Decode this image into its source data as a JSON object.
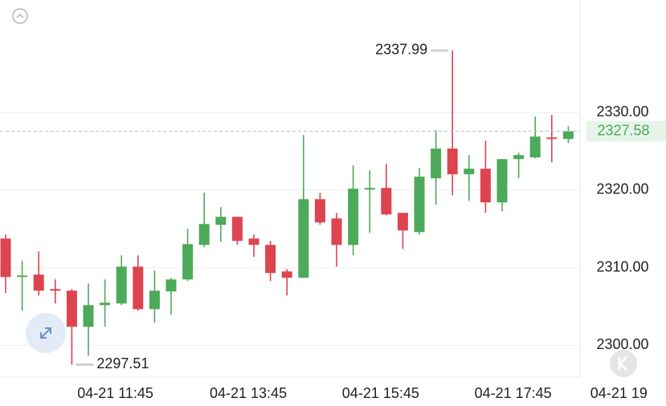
{
  "chart_data": {
    "type": "candlestick",
    "open": [
      2313.76,
      2308.8,
      2309.11,
      2307.25,
      2307.04,
      2302.39,
      2305.18,
      2305.39,
      2310.14,
      2304.66,
      2306.94,
      2308.49,
      2312.94,
      2315.52,
      2316.56,
      2313.76,
      2312.94,
      2309.52,
      2308.7,
      2318.83,
      2316.35,
      2312.94,
      2320.07,
      2320.28,
      2317.07,
      2314.59,
      2321.52,
      2325.35,
      2322.04,
      2322.76,
      2318.42,
      2324.0,
      2324.21,
      2326.79,
      2326.59
    ],
    "high": [
      2314.28,
      2310.87,
      2312.11,
      2308.49,
      2307.25,
      2307.97,
      2308.49,
      2311.59,
      2311.59,
      2309.63,
      2308.7,
      2315.01,
      2319.66,
      2317.8,
      2316.56,
      2314.28,
      2313.45,
      2309.83,
      2327.1,
      2319.66,
      2317.07,
      2323.18,
      2322.55,
      2323.38,
      2317.07,
      2322.86,
      2327.72,
      2337.99,
      2324.52,
      2326.38,
      2324.0,
      2324.83,
      2329.48,
      2329.69,
      2328.24
    ],
    "low": [
      2306.73,
      2304.46,
      2306.42,
      2305.39,
      2297.51,
      2298.67,
      2302.39,
      2305.18,
      2304.46,
      2302.91,
      2303.94,
      2308.28,
      2312.63,
      2313.35,
      2312.94,
      2311.39,
      2308.28,
      2306.42,
      2308.7,
      2315.52,
      2310.14,
      2311.59,
      2314.49,
      2316.76,
      2312.42,
      2314.28,
      2318.11,
      2319.35,
      2318.62,
      2317.07,
      2317.28,
      2321.52,
      2324.11,
      2323.59,
      2326.07
    ],
    "close": [
      2308.8,
      2309.0,
      2307.04,
      2307.04,
      2302.39,
      2305.18,
      2305.49,
      2310.14,
      2304.66,
      2307.04,
      2308.49,
      2313.04,
      2315.63,
      2316.56,
      2313.45,
      2312.94,
      2309.32,
      2308.7,
      2318.83,
      2315.83,
      2312.94,
      2320.18,
      2320.28,
      2316.87,
      2314.8,
      2321.73,
      2325.35,
      2322.04,
      2322.76,
      2318.42,
      2324.0,
      2324.52,
      2326.9,
      2326.59,
      2327.58
    ],
    "up_color": "#4caa5a",
    "down_color": "#dc4550",
    "ylim": [
      2295.9,
      2344.5
    ],
    "yticks": [
      {
        "value": 2300,
        "label": "2300.00"
      },
      {
        "value": 2310,
        "label": "2310.00"
      },
      {
        "value": 2320,
        "label": "2320.00"
      },
      {
        "value": 2330,
        "label": "2330.00"
      }
    ],
    "xticks": [
      {
        "value": 7,
        "label": "04-21 11:45"
      },
      {
        "value": 15,
        "label": "04-21 13:45"
      },
      {
        "value": 23,
        "label": "04-21 15:45"
      },
      {
        "value": 31,
        "label": "04-21 17:45"
      },
      {
        "value": 38,
        "label": "04-21 19"
      }
    ],
    "grid": true
  }
}
